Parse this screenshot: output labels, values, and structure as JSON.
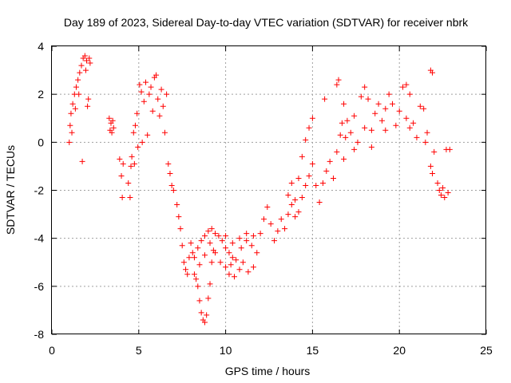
{
  "chart_data": {
    "type": "scatter",
    "title": "Day 189 of 2023, Sidereal Day-to-day VTEC variation (SDTVAR) for receiver nbrk",
    "xlabel": "GPS time / hours",
    "ylabel": "SDTVAR / TECUs",
    "xlim": [
      0,
      25
    ],
    "ylim": [
      -8,
      4
    ],
    "xticks": [
      {
        "value": 0,
        "label": "0"
      },
      {
        "value": 5,
        "label": "5"
      },
      {
        "value": 10,
        "label": "10"
      },
      {
        "value": 15,
        "label": "15"
      },
      {
        "value": 20,
        "label": "20"
      },
      {
        "value": 25,
        "label": "25"
      }
    ],
    "yticks": [
      {
        "value": -8,
        "label": "-8"
      },
      {
        "value": -6,
        "label": "-6"
      },
      {
        "value": -4,
        "label": "-4"
      },
      {
        "value": -2,
        "label": "-2"
      },
      {
        "value": 0,
        "label": "0"
      },
      {
        "value": 2,
        "label": "2"
      },
      {
        "value": 4,
        "label": "4"
      }
    ],
    "grid": true,
    "marker": "+",
    "color": "#ff0000",
    "series": [
      {
        "name": "SDTVAR",
        "points": [
          [
            1.0,
            0.0
          ],
          [
            1.05,
            0.7
          ],
          [
            1.1,
            1.2
          ],
          [
            1.15,
            0.4
          ],
          [
            1.2,
            1.6
          ],
          [
            1.3,
            2.0
          ],
          [
            1.35,
            1.4
          ],
          [
            1.4,
            2.3
          ],
          [
            1.5,
            2.6
          ],
          [
            1.55,
            2.0
          ],
          [
            1.6,
            2.9
          ],
          [
            1.7,
            3.2
          ],
          [
            1.75,
            -0.8
          ],
          [
            1.8,
            3.5
          ],
          [
            1.9,
            3.6
          ],
          [
            1.95,
            3.0
          ],
          [
            2.0,
            3.4
          ],
          [
            2.05,
            1.5
          ],
          [
            2.1,
            1.8
          ],
          [
            2.15,
            3.5
          ],
          [
            2.2,
            3.3
          ],
          [
            3.3,
            1.0
          ],
          [
            3.35,
            0.5
          ],
          [
            3.4,
            0.8
          ],
          [
            3.45,
            0.4
          ],
          [
            3.5,
            0.9
          ],
          [
            3.55,
            0.6
          ],
          [
            3.9,
            -0.7
          ],
          [
            4.0,
            -1.4
          ],
          [
            4.05,
            -2.3
          ],
          [
            4.1,
            -0.9
          ],
          [
            4.4,
            -1.7
          ],
          [
            4.5,
            -2.3
          ],
          [
            4.55,
            -1.0
          ],
          [
            4.6,
            -0.6
          ],
          [
            4.7,
            0.4
          ],
          [
            4.75,
            -0.9
          ],
          [
            4.8,
            0.7
          ],
          [
            4.9,
            1.2
          ],
          [
            4.95,
            -0.2
          ],
          [
            5.05,
            2.4
          ],
          [
            5.15,
            2.1
          ],
          [
            5.2,
            0.0
          ],
          [
            5.3,
            1.7
          ],
          [
            5.4,
            2.5
          ],
          [
            5.5,
            0.3
          ],
          [
            5.6,
            2.0
          ],
          [
            5.7,
            2.3
          ],
          [
            5.8,
            1.3
          ],
          [
            5.9,
            2.7
          ],
          [
            6.0,
            2.8
          ],
          [
            6.1,
            1.8
          ],
          [
            6.2,
            1.1
          ],
          [
            6.3,
            2.2
          ],
          [
            6.4,
            1.5
          ],
          [
            6.5,
            0.4
          ],
          [
            6.6,
            2.0
          ],
          [
            6.7,
            -0.9
          ],
          [
            6.8,
            -1.3
          ],
          [
            6.9,
            -1.8
          ],
          [
            7.0,
            -2.0
          ],
          [
            7.2,
            -2.6
          ],
          [
            7.3,
            -3.1
          ],
          [
            7.4,
            -3.6
          ],
          [
            7.5,
            -4.3
          ],
          [
            7.6,
            -5.0
          ],
          [
            7.7,
            -5.3
          ],
          [
            7.8,
            -5.5
          ],
          [
            7.9,
            -4.8
          ],
          [
            8.0,
            -4.2
          ],
          [
            8.1,
            -4.6
          ],
          [
            8.2,
            -5.5
          ],
          [
            8.3,
            -5.7
          ],
          [
            8.4,
            -6.0
          ],
          [
            8.5,
            -6.6
          ],
          [
            8.6,
            -7.1
          ],
          [
            8.7,
            -7.4
          ],
          [
            8.8,
            -7.5
          ],
          [
            8.9,
            -7.2
          ],
          [
            9.0,
            -6.5
          ],
          [
            9.1,
            -5.9
          ],
          [
            9.2,
            -5.0
          ],
          [
            9.3,
            -4.5
          ],
          [
            8.4,
            -4.4
          ],
          [
            8.6,
            -4.1
          ],
          [
            8.8,
            -3.9
          ],
          [
            9.0,
            -3.7
          ],
          [
            9.2,
            -3.6
          ],
          [
            9.4,
            -3.8
          ],
          [
            9.6,
            -3.9
          ],
          [
            9.8,
            -4.1
          ],
          [
            10.0,
            -4.4
          ],
          [
            10.2,
            -4.6
          ],
          [
            10.4,
            -4.8
          ],
          [
            8.2,
            -4.8
          ],
          [
            8.5,
            -5.1
          ],
          [
            8.8,
            -4.7
          ],
          [
            9.1,
            -4.2
          ],
          [
            9.4,
            -4.6
          ],
          [
            9.7,
            -5.0
          ],
          [
            10.0,
            -5.2
          ],
          [
            10.3,
            -5.1
          ],
          [
            10.6,
            -4.9
          ],
          [
            10.9,
            -4.4
          ],
          [
            11.2,
            -4.1
          ],
          [
            11.5,
            -4.3
          ],
          [
            11.8,
            -4.6
          ],
          [
            10.2,
            -5.5
          ],
          [
            10.5,
            -5.6
          ],
          [
            10.8,
            -5.3
          ],
          [
            11.0,
            -5.0
          ],
          [
            11.3,
            -5.4
          ],
          [
            11.6,
            -5.2
          ],
          [
            10.0,
            -3.9
          ],
          [
            10.4,
            -4.2
          ],
          [
            10.8,
            -4.0
          ],
          [
            11.2,
            -3.8
          ],
          [
            11.6,
            -3.9
          ],
          [
            12.0,
            -3.8
          ],
          [
            12.2,
            -3.2
          ],
          [
            12.4,
            -2.7
          ],
          [
            12.6,
            -3.4
          ],
          [
            12.8,
            -4.1
          ],
          [
            13.0,
            -3.7
          ],
          [
            13.2,
            -3.2
          ],
          [
            13.4,
            -3.6
          ],
          [
            13.6,
            -3.0
          ],
          [
            13.8,
            -2.6
          ],
          [
            14.0,
            -3.1
          ],
          [
            14.2,
            -2.9
          ],
          [
            14.4,
            -2.3
          ],
          [
            14.6,
            -1.8
          ],
          [
            14.8,
            -1.4
          ],
          [
            15.0,
            -0.9
          ],
          [
            15.2,
            -1.8
          ],
          [
            15.4,
            -2.5
          ],
          [
            15.6,
            -1.7
          ],
          [
            14.2,
            -1.5
          ],
          [
            14.4,
            -0.6
          ],
          [
            14.6,
            0.1
          ],
          [
            14.8,
            0.6
          ],
          [
            15.0,
            1.0
          ],
          [
            13.6,
            -2.2
          ],
          [
            13.8,
            -1.7
          ],
          [
            14.0,
            -2.4
          ],
          [
            15.8,
            -1.2
          ],
          [
            16.0,
            -0.8
          ],
          [
            16.2,
            -1.5
          ],
          [
            15.7,
            1.8
          ],
          [
            16.4,
            -0.4
          ],
          [
            16.6,
            0.3
          ],
          [
            16.7,
            0.8
          ],
          [
            16.8,
            -0.7
          ],
          [
            16.9,
            0.2
          ],
          [
            17.0,
            0.9
          ],
          [
            16.4,
            2.4
          ],
          [
            16.5,
            2.6
          ],
          [
            16.8,
            1.6
          ],
          [
            17.2,
            0.4
          ],
          [
            17.4,
            1.1
          ],
          [
            17.6,
            0.0
          ],
          [
            17.8,
            1.9
          ],
          [
            18.0,
            2.3
          ],
          [
            18.2,
            1.8
          ],
          [
            18.4,
            0.5
          ],
          [
            18.6,
            1.2
          ],
          [
            18.8,
            1.6
          ],
          [
            19.0,
            0.9
          ],
          [
            19.2,
            1.4
          ],
          [
            19.4,
            2.0
          ],
          [
            19.6,
            1.6
          ],
          [
            19.8,
            0.7
          ],
          [
            20.0,
            1.3
          ],
          [
            20.2,
            2.3
          ],
          [
            20.4,
            2.4
          ],
          [
            20.6,
            2.0
          ],
          [
            20.8,
            0.8
          ],
          [
            21.0,
            0.2
          ],
          [
            21.2,
            1.5
          ],
          [
            20.4,
            1.0
          ],
          [
            20.6,
            0.6
          ],
          [
            19.2,
            0.5
          ],
          [
            18.4,
            -0.2
          ],
          [
            18.0,
            0.6
          ],
          [
            17.4,
            -0.3
          ],
          [
            21.4,
            1.4
          ],
          [
            21.5,
            0.0
          ],
          [
            21.6,
            0.4
          ],
          [
            21.8,
            3.0
          ],
          [
            21.9,
            2.9
          ],
          [
            21.8,
            -1.0
          ],
          [
            21.9,
            -1.3
          ],
          [
            22.0,
            -0.4
          ],
          [
            22.2,
            -1.7
          ],
          [
            22.4,
            -2.2
          ],
          [
            22.6,
            -2.3
          ],
          [
            22.8,
            -2.1
          ],
          [
            22.7,
            -0.3
          ],
          [
            22.9,
            -0.3
          ],
          [
            22.5,
            -1.9
          ],
          [
            22.3,
            -2.0
          ]
        ]
      }
    ]
  }
}
